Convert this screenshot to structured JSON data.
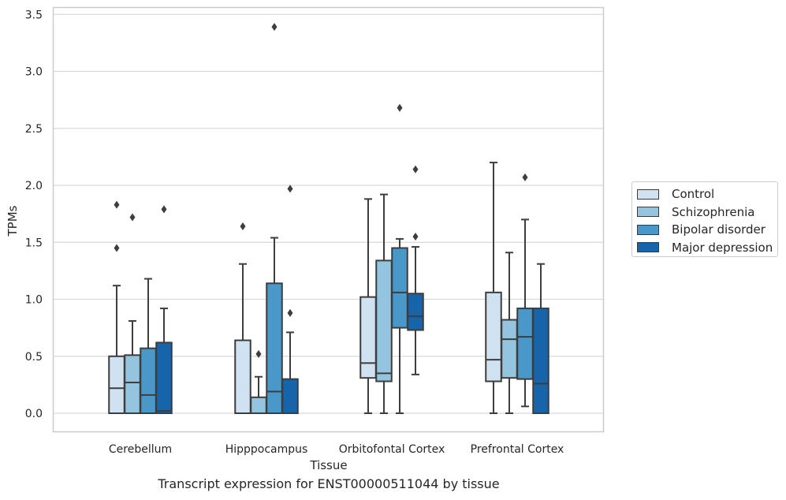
{
  "caption": "Transcript expression for ENST00000511044 by tissue",
  "chart_data": {
    "type": "box",
    "xlabel": "Tissue",
    "ylabel": "TPMs",
    "ylim": [
      -0.165,
      3.57
    ],
    "yticks": [
      "0.0",
      "0.5",
      "1.0",
      "1.5",
      "2.0",
      "2.5",
      "3.0",
      "3.5"
    ],
    "grid": true,
    "legend_position": "right",
    "categories": [
      "Cerebellum",
      "Hipppocampus",
      "Orbitofontal Cortex",
      "Prefrontal Cortex"
    ],
    "series": [
      {
        "name": "Control",
        "color": "#d0e1f2",
        "boxes": [
          {
            "whislo": 0.0,
            "q1": 0.0,
            "med": 0.22,
            "q3": 0.5,
            "whishi": 1.12,
            "fliers": [
              1.45,
              1.83
            ]
          },
          {
            "whislo": 0.0,
            "q1": 0.0,
            "med": 0.0,
            "q3": 0.64,
            "whishi": 1.31,
            "fliers": [
              1.64
            ]
          },
          {
            "whislo": 0.0,
            "q1": 0.31,
            "med": 0.44,
            "q3": 1.02,
            "whishi": 1.88,
            "fliers": []
          },
          {
            "whislo": 0.0,
            "q1": 0.28,
            "med": 0.47,
            "q3": 1.06,
            "whishi": 2.2,
            "fliers": []
          }
        ]
      },
      {
        "name": "Schizophrenia",
        "color": "#94c4df",
        "boxes": [
          {
            "whislo": 0.0,
            "q1": 0.0,
            "med": 0.27,
            "q3": 0.51,
            "whishi": 0.81,
            "fliers": [
              1.72
            ]
          },
          {
            "whislo": 0.0,
            "q1": 0.0,
            "med": 0.0,
            "q3": 0.14,
            "whishi": 0.32,
            "fliers": [
              0.52
            ]
          },
          {
            "whislo": 0.0,
            "q1": 0.28,
            "med": 0.35,
            "q3": 1.34,
            "whishi": 1.92,
            "fliers": []
          },
          {
            "whislo": 0.0,
            "q1": 0.31,
            "med": 0.65,
            "q3": 0.82,
            "whishi": 1.41,
            "fliers": []
          }
        ]
      },
      {
        "name": "Bipolar disorder",
        "color": "#4a98c9",
        "boxes": [
          {
            "whislo": 0.0,
            "q1": 0.0,
            "med": 0.16,
            "q3": 0.57,
            "whishi": 1.18,
            "fliers": []
          },
          {
            "whislo": 0.0,
            "q1": 0.0,
            "med": 0.19,
            "q3": 1.14,
            "whishi": 1.54,
            "fliers": [
              3.39
            ]
          },
          {
            "whislo": 0.0,
            "q1": 0.75,
            "med": 1.06,
            "q3": 1.45,
            "whishi": 1.53,
            "fliers": [
              2.68
            ]
          },
          {
            "whislo": 0.06,
            "q1": 0.3,
            "med": 0.67,
            "q3": 0.92,
            "whishi": 1.7,
            "fliers": [
              2.07
            ]
          }
        ]
      },
      {
        "name": "Major depression",
        "color": "#1764ab",
        "boxes": [
          {
            "whislo": 0.0,
            "q1": 0.0,
            "med": 0.02,
            "q3": 0.62,
            "whishi": 0.92,
            "fliers": [
              1.79
            ]
          },
          {
            "whislo": 0.0,
            "q1": 0.0,
            "med": 0.0,
            "q3": 0.3,
            "whishi": 0.71,
            "fliers": [
              0.88,
              1.97
            ]
          },
          {
            "whislo": 0.34,
            "q1": 0.73,
            "med": 0.85,
            "q3": 1.05,
            "whishi": 1.46,
            "fliers": [
              1.55,
              2.14
            ]
          },
          {
            "whislo": 0.0,
            "q1": 0.0,
            "med": 0.26,
            "q3": 0.92,
            "whishi": 1.31,
            "fliers": []
          }
        ]
      }
    ]
  }
}
